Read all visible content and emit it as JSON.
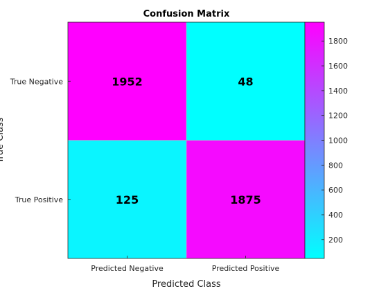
{
  "chart_data": {
    "type": "heatmap",
    "title": "Confusion Matrix",
    "xlabel": "Predicted Class",
    "ylabel": "True Class",
    "x_categories": [
      "Predicted Negative",
      "Predicted Positive"
    ],
    "y_categories": [
      "True Negative",
      "True Positive"
    ],
    "values": [
      [
        1952,
        48
      ],
      [
        125,
        1875
      ]
    ],
    "colormap": [
      "#00ffff",
      "#ff00ff"
    ],
    "colorbar": {
      "range": [
        48,
        1952
      ],
      "ticks": [
        200,
        400,
        600,
        800,
        1000,
        1200,
        1400,
        1600,
        1800
      ]
    }
  }
}
